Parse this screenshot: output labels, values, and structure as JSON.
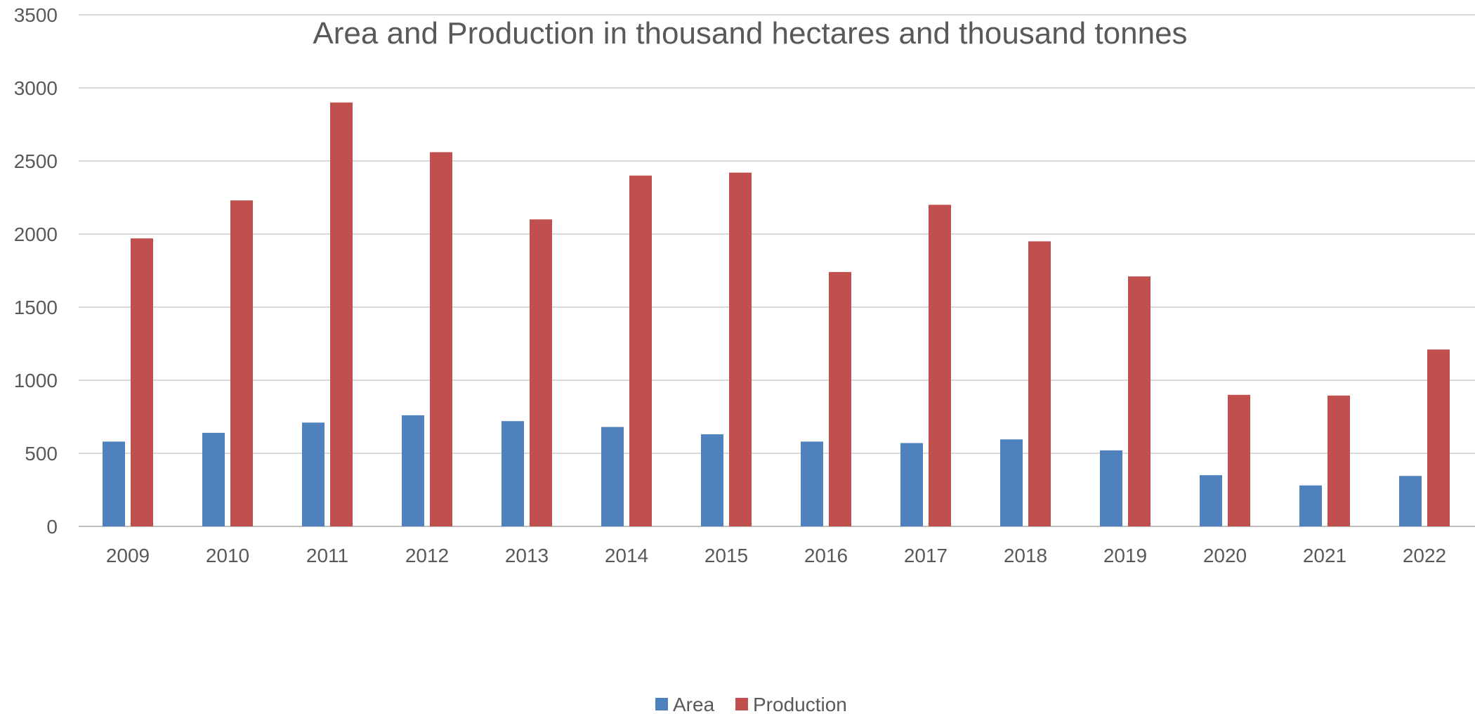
{
  "chart_data": {
    "type": "bar",
    "title": "Area and Production in thousand hectares and thousand tonnes",
    "xlabel": "",
    "ylabel": "",
    "categories": [
      "2009",
      "2010",
      "2011",
      "2012",
      "2013",
      "2014",
      "2015",
      "2016",
      "2017",
      "2018",
      "2019",
      "2020",
      "2021",
      "2022"
    ],
    "series": [
      {
        "name": "Area",
        "color": "#4F81BD",
        "values": [
          580,
          640,
          710,
          760,
          720,
          680,
          630,
          580,
          570,
          595,
          520,
          350,
          280,
          345
        ]
      },
      {
        "name": "Production",
        "color": "#C0504D",
        "values": [
          1970,
          2230,
          2900,
          2560,
          2100,
          2400,
          2420,
          1740,
          2200,
          1950,
          1710,
          900,
          895,
          1210
        ]
      }
    ],
    "ylim": [
      0,
      3500
    ],
    "yticks": [
      0,
      500,
      1000,
      1500,
      2000,
      2500,
      3000,
      3500
    ],
    "grid": true,
    "legend_position": "bottom-center"
  }
}
